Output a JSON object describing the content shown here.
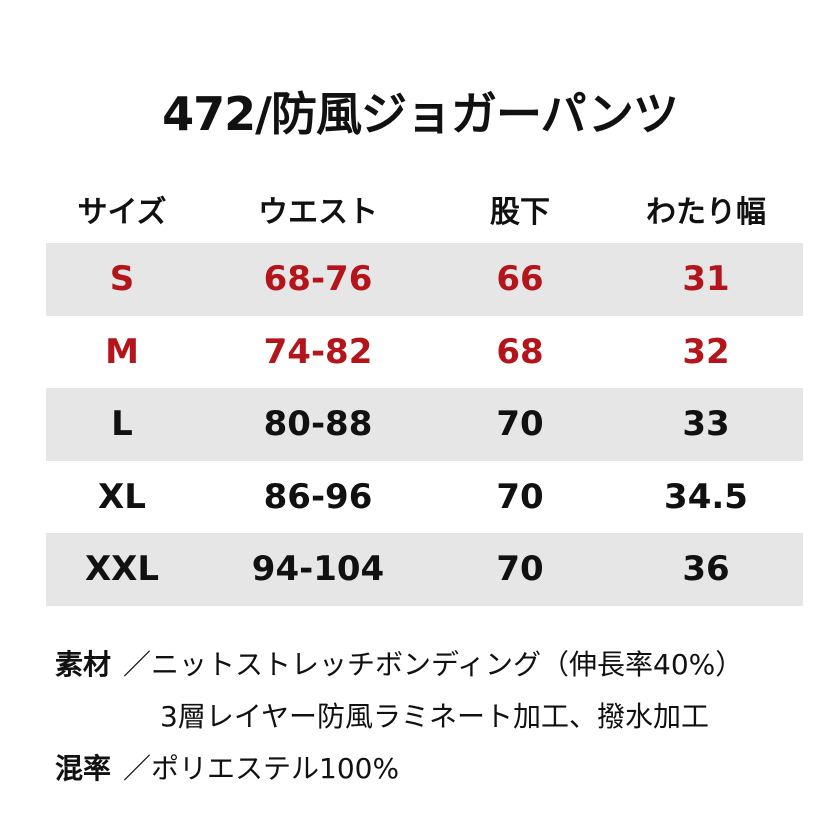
{
  "title": "472/防風ジョガーパンツ",
  "table": {
    "header": [
      "サイズ",
      "ウエスト",
      "股下",
      "わたり幅"
    ],
    "rows": [
      {
        "cells": [
          "S",
          "68-76",
          "66",
          "31"
        ],
        "color": "#b3151b"
      },
      {
        "cells": [
          "M",
          "74-82",
          "68",
          "32"
        ],
        "color": "#b3151b"
      },
      {
        "cells": [
          "L",
          "80-88",
          "70",
          "33"
        ],
        "color": "#111111"
      },
      {
        "cells": [
          "XL",
          "86-96",
          "70",
          "34.5"
        ],
        "color": "#111111"
      },
      {
        "cells": [
          "XXL",
          "94-104",
          "70",
          "36"
        ],
        "color": "#111111"
      }
    ]
  },
  "notes": [
    {
      "label": "素材",
      "lines": [
        "／ニットストレッチボンディング（伸長率40%）",
        "3層レイヤー防風ラミネート加工、撥水加工"
      ]
    },
    {
      "label": "混率",
      "lines": [
        "／ポリエステル100%"
      ]
    }
  ]
}
